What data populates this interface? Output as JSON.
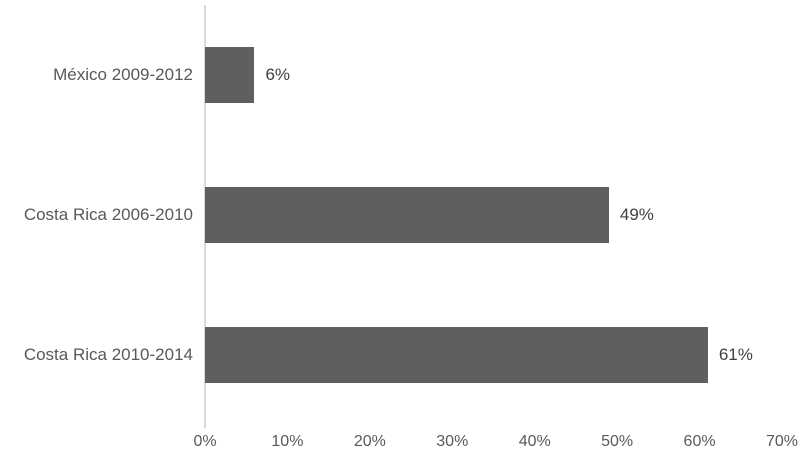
{
  "chart_data": {
    "type": "bar",
    "orientation": "horizontal",
    "title": "",
    "xlabel": "",
    "ylabel": "",
    "categories": [
      "México 2009-2012",
      "Costa Rica 2006-2010",
      "Costa Rica 2010-2014"
    ],
    "values": [
      6,
      49,
      61
    ],
    "data_labels": [
      "6%",
      "49%",
      "61%"
    ],
    "x_ticks": [
      "0%",
      "10%",
      "20%",
      "30%",
      "40%",
      "50%",
      "60%",
      "70%"
    ],
    "x_tick_values": [
      0,
      10,
      20,
      30,
      40,
      50,
      60,
      70
    ],
    "xlim": [
      0,
      70
    ],
    "grid": false,
    "legend": false,
    "colors": {
      "bar_fill": "#5e5f5f",
      "axis_line": "#d9d9d9",
      "category_label": "#595959",
      "tick_label": "#595959",
      "data_label": "#404040",
      "background": "#ffffff"
    }
  }
}
